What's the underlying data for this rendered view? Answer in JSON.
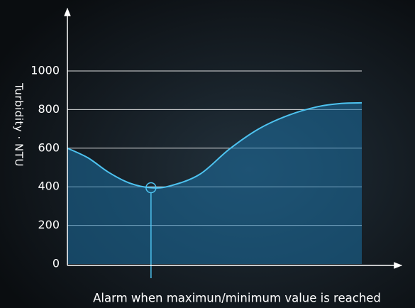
{
  "chart_data": {
    "type": "area",
    "ylabel": "Turbidity · NTU",
    "annotation": "Alarm when maximun/minimum value is reached",
    "x": [
      0,
      7,
      14,
      21,
      28.4,
      35,
      45,
      55,
      65,
      75,
      85,
      93,
      100
    ],
    "values": [
      600,
      550,
      475,
      420,
      395,
      405,
      465,
      595,
      700,
      770,
      815,
      832,
      835
    ],
    "xlim": [
      0,
      100
    ],
    "ylim": [
      0,
      1000
    ],
    "yticks": [
      0,
      200,
      400,
      600,
      800,
      1000
    ],
    "grid": true,
    "color": "#4ec3f0",
    "fill_color": "#1b6fa3"
  }
}
